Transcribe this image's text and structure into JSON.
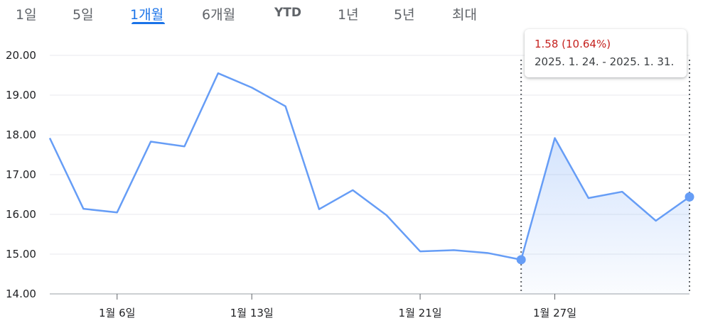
{
  "tabs": [
    {
      "label": "1일",
      "active": false
    },
    {
      "label": "5일",
      "active": false
    },
    {
      "label": "1개월",
      "active": true
    },
    {
      "label": "6개월",
      "active": false
    },
    {
      "label": "YTD",
      "active": false
    },
    {
      "label": "1년",
      "active": false
    },
    {
      "label": "5년",
      "active": false
    },
    {
      "label": "최대",
      "active": false
    }
  ],
  "tooltip": {
    "change": "1.58 (10.64%)",
    "range": "2025. 1. 24. - 2025. 1. 31."
  },
  "colors": {
    "line": "#669df6",
    "accent": "#1a73e8",
    "change_negative": "#c5221f",
    "grid": "#e8eaed"
  },
  "chart_data": {
    "type": "line",
    "ylim": [
      14,
      20
    ],
    "y_ticks": [
      "20.00",
      "19.00",
      "18.00",
      "17.00",
      "16.00",
      "15.00",
      "14.00"
    ],
    "x_tick_labels": [
      "1월 6일",
      "1월 13일",
      "1월 21일",
      "1월 27일"
    ],
    "x_tick_index": [
      2,
      6,
      11,
      15
    ],
    "grid": true,
    "values": [
      17.92,
      16.14,
      16.05,
      17.83,
      17.71,
      19.55,
      19.19,
      18.72,
      16.13,
      16.61,
      15.98,
      15.07,
      15.1,
      15.03,
      14.86,
      17.92,
      16.41,
      16.57,
      15.84,
      16.44
    ],
    "selection": {
      "start_index": 14,
      "end_index": 19
    }
  }
}
